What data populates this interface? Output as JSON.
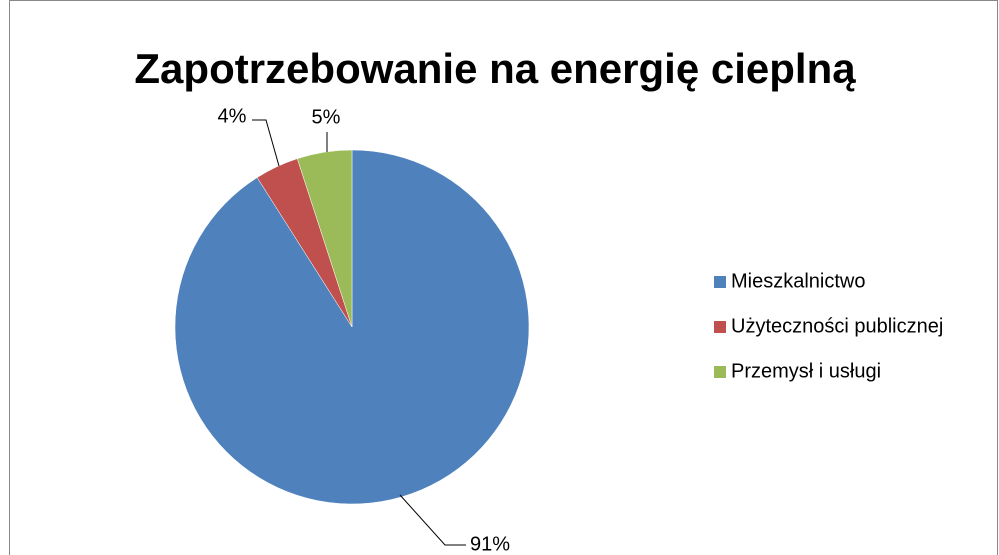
{
  "chart_data": {
    "type": "pie",
    "title": "Zapotrzebowanie na energię cieplną",
    "categories": [
      "Mieszkalnictwo",
      "Użyteczności publicznej",
      "Przemysł i usługi"
    ],
    "values": [
      91,
      4,
      5
    ],
    "value_labels": [
      "91%",
      "4%",
      "5%"
    ],
    "colors": [
      "#4f81bd",
      "#c0504d",
      "#9bbb59"
    ],
    "legend": "right"
  }
}
